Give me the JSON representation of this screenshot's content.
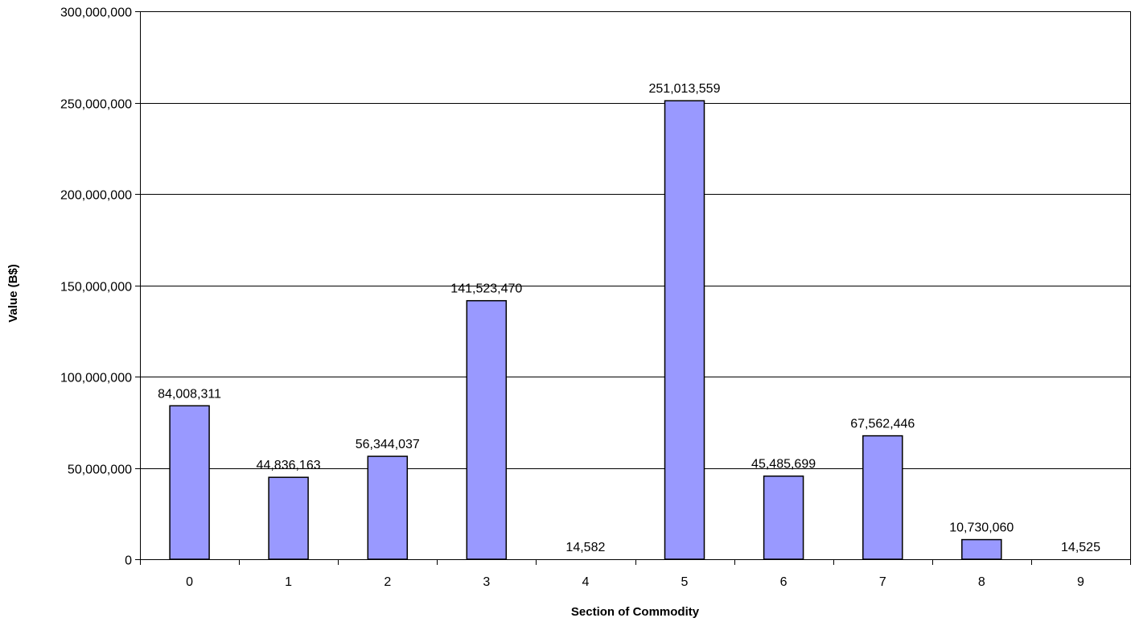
{
  "chart_data": {
    "type": "bar",
    "title": "",
    "xlabel": "Section of Commodity",
    "ylabel": "Value (B$)",
    "categories": [
      "0",
      "1",
      "2",
      "3",
      "4",
      "5",
      "6",
      "7",
      "8",
      "9"
    ],
    "values": [
      84008311,
      44836163,
      56344037,
      141523470,
      14582,
      251013559,
      45485699,
      67562446,
      10730060,
      14525
    ],
    "value_labels": [
      "84,008,311",
      "44,836,163",
      "56,344,037",
      "141,523,470",
      "14,582",
      "251,013,559",
      "45,485,699",
      "67,562,446",
      "10,730,060",
      "14,525"
    ],
    "ylim": [
      0,
      300000000
    ],
    "yticks": [
      0,
      50000000,
      100000000,
      150000000,
      200000000,
      250000000,
      300000000
    ],
    "ytick_labels": [
      "0",
      "50,000,000",
      "100,000,000",
      "150,000,000",
      "200,000,000",
      "250,000,000",
      "300,000,000"
    ],
    "grid": true,
    "legend": false,
    "bar_color": "#9999ff",
    "bar_edge_color": "#000000"
  }
}
